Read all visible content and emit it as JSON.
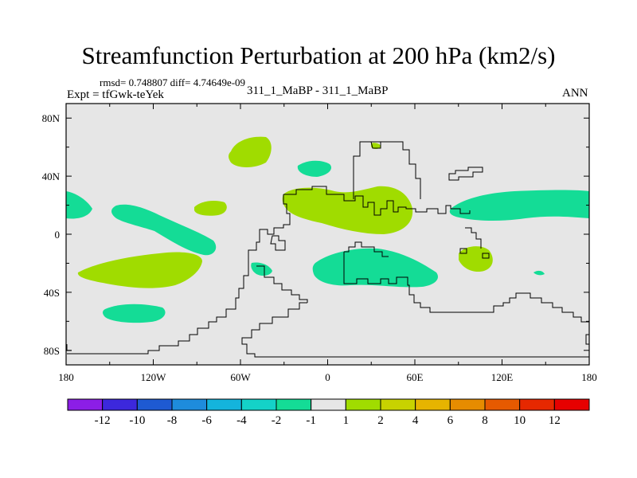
{
  "chart_data": {
    "type": "contour_map",
    "title": "Streamfunction Perturbation at 200 hPa (km2/s)",
    "stats_text": "rmsd= 0.748807 diff= 4.74649e-09",
    "experiment_label": "Expt = tfGwk-teYek",
    "subtitle": "311_1_MaBP - 311_1_MaBP",
    "season": "ANN",
    "x_tick_labels": [
      "180",
      "120W",
      "60W",
      "0",
      "60E",
      "120E",
      "180"
    ],
    "y_tick_labels": [
      "80N",
      "40N",
      "0",
      "40S",
      "80S"
    ],
    "x_range": [
      -180,
      180
    ],
    "y_range": [
      -90,
      90
    ],
    "colorbar_levels": [
      "-12",
      "-10",
      "-8",
      "-6",
      "-4",
      "-2",
      "-1",
      "1",
      "2",
      "4",
      "6",
      "8",
      "10",
      "12"
    ],
    "colorbar_colors": [
      "#8c1ee6",
      "#3c28dc",
      "#1e5ad2",
      "#1e8cdc",
      "#14b4dc",
      "#14d2c8",
      "#14dc96",
      "#e6e6e6",
      "#a0dc00",
      "#c8d200",
      "#e6b400",
      "#e68c00",
      "#e65a00",
      "#e62800",
      "#e60000"
    ]
  }
}
